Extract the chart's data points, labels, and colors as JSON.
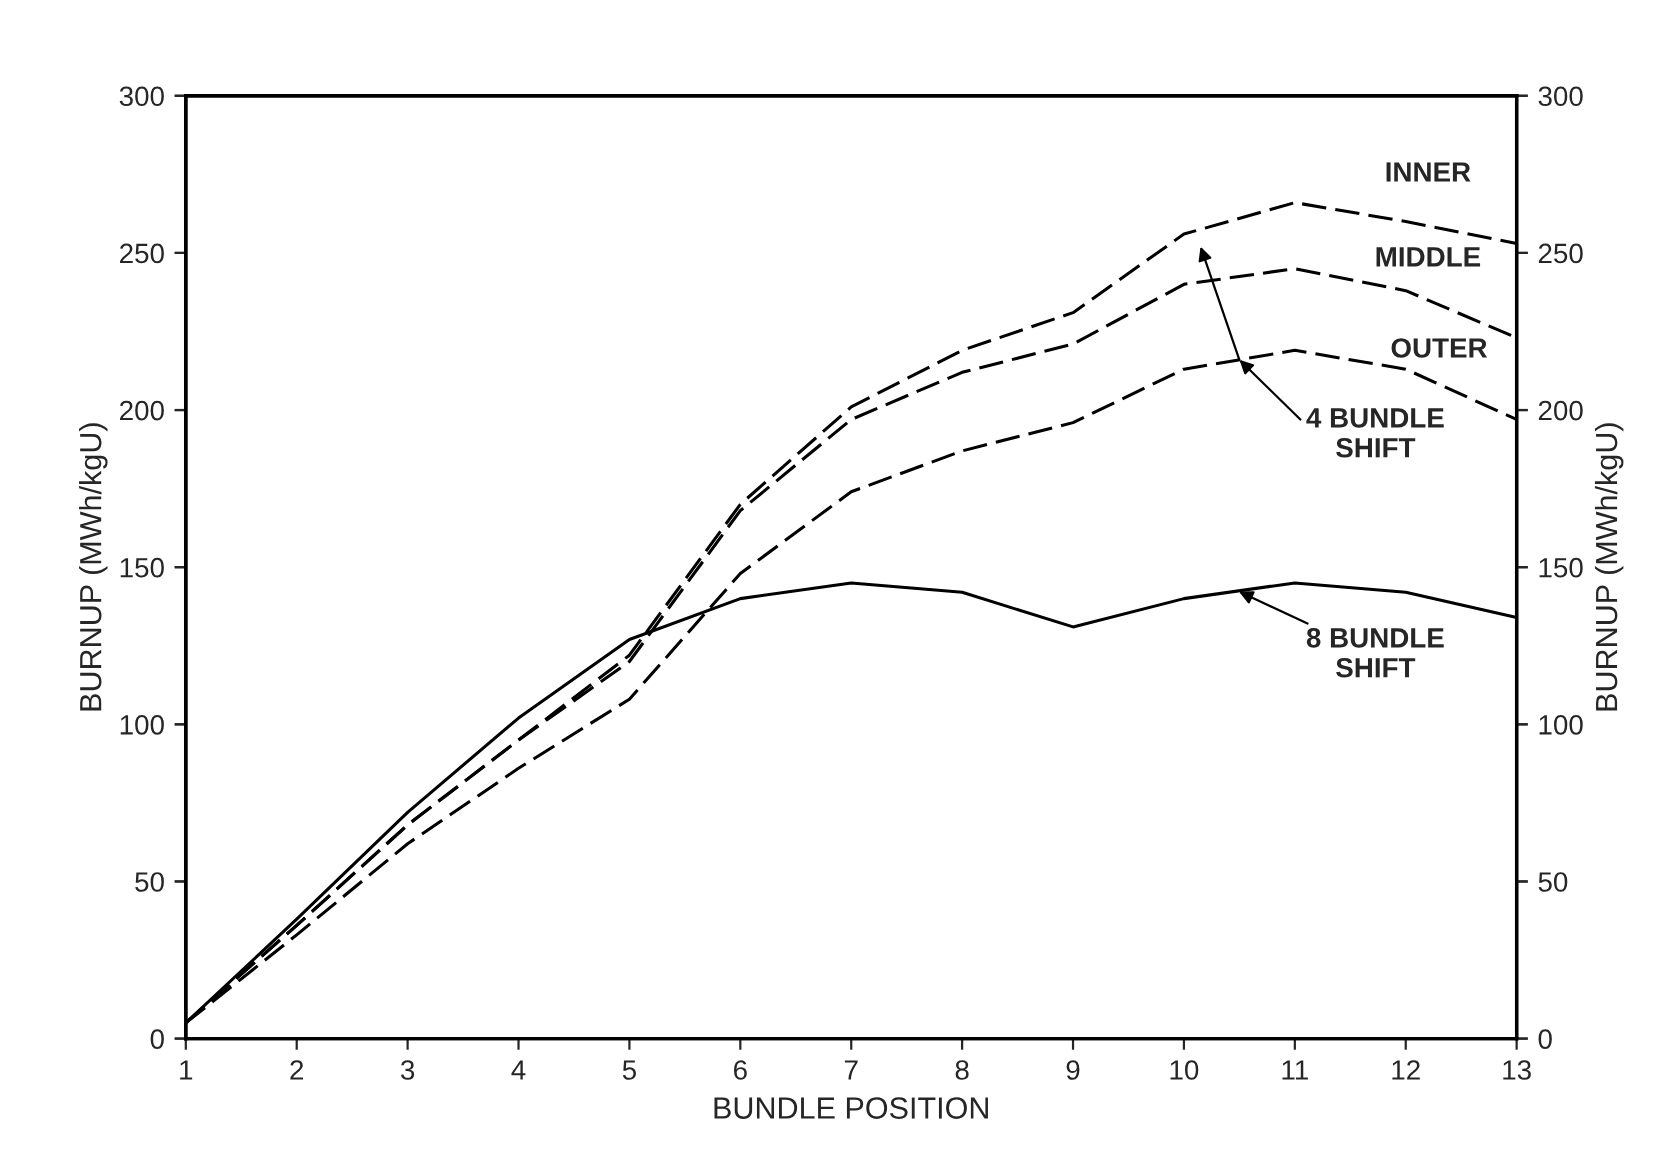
{
  "chart_data": {
    "type": "line",
    "xlabel": "BUNDLE POSITION",
    "ylabel": "BURNUP (MWh/kgU)",
    "y2label": "BURNUP (MWh/kgU)",
    "x": [
      1,
      2,
      3,
      4,
      5,
      6,
      7,
      8,
      9,
      10,
      11,
      12,
      13
    ],
    "xlim": [
      1,
      13
    ],
    "xticks": [
      1,
      2,
      3,
      4,
      5,
      6,
      7,
      8,
      9,
      10,
      11,
      12,
      13
    ],
    "ylim": [
      0,
      300
    ],
    "yticks": [
      0,
      50,
      100,
      150,
      200,
      250,
      300
    ],
    "y2lim": [
      0,
      300
    ],
    "y2ticks": [
      0,
      50,
      100,
      150,
      200,
      250,
      300
    ],
    "grid": false,
    "legend": false,
    "marker": "none",
    "series": [
      {
        "name": "INNER",
        "color": "#000000",
        "line_style": "dashed",
        "values": [
          5,
          36,
          68,
          95,
          122,
          170,
          201,
          219,
          231,
          256,
          266,
          260,
          253
        ]
      },
      {
        "name": "MIDDLE",
        "color": "#000000",
        "line_style": "dashed",
        "values": [
          5,
          36,
          68,
          95,
          120,
          168,
          197,
          212,
          221,
          240,
          245,
          238,
          223
        ]
      },
      {
        "name": "OUTER",
        "color": "#000000",
        "line_style": "dashed",
        "values": [
          5,
          33,
          62,
          86,
          108,
          148,
          174,
          187,
          196,
          213,
          219,
          213,
          197
        ]
      },
      {
        "name": "8 BUNDLE SHIFT",
        "color": "#000000",
        "line_style": "solid",
        "values": [
          5,
          38,
          72,
          102,
          127,
          140,
          145,
          142,
          131,
          140,
          145,
          142,
          134
        ]
      }
    ],
    "annotations": [
      {
        "text": "4 BUNDLE SHIFT",
        "x": 10.5,
        "y": 216
      }
    ]
  }
}
